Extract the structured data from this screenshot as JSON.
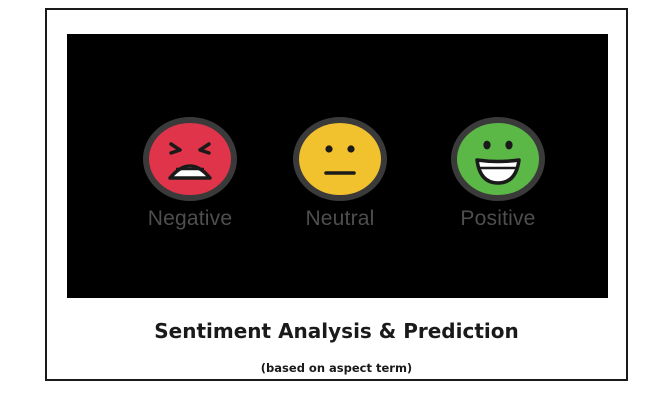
{
  "colors": {
    "negative": "#e0344a",
    "neutral": "#f2c12e",
    "positive": "#5bb847",
    "face_outline": "#3a3a3a",
    "panel": "#000000",
    "label": "#4e4e4e"
  },
  "sentiments": [
    {
      "label": "Negative",
      "icon": "sad-face-icon"
    },
    {
      "label": "Neutral",
      "icon": "neutral-face-icon"
    },
    {
      "label": "Positive",
      "icon": "happy-face-icon"
    }
  ],
  "title": "Sentiment Analysis & Prediction",
  "subtitle": "(based on aspect term)"
}
